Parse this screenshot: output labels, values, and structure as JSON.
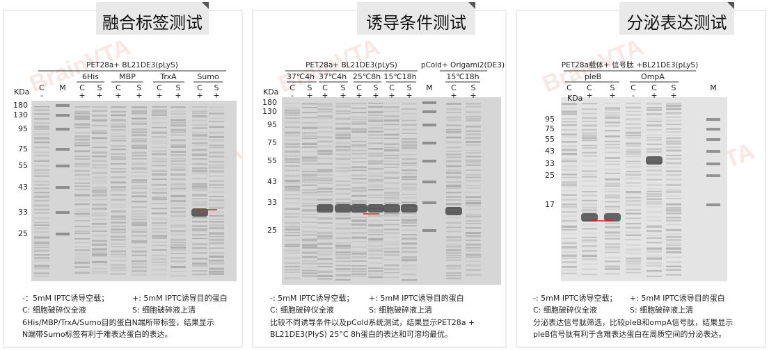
{
  "watermark": "BrainVTA",
  "panels": [
    {
      "title": "融合标签测试",
      "constructs": [
        {
          "label": "PET28a+ BL21DE3(pLyS)",
          "groups": [
            "6His",
            "MBP",
            "TrxA",
            "Sumo"
          ]
        }
      ],
      "kda_label": "KDa",
      "markers": [
        "180",
        "130",
        "95",
        "75",
        "55",
        "43",
        "33",
        "25"
      ],
      "lanes": [
        {
          "label": "C",
          "sign": "-"
        },
        {
          "label": "M"
        },
        {
          "label": "C",
          "sign": "+"
        },
        {
          "label": "S",
          "sign": "+"
        },
        {
          "label": "C",
          "sign": "+"
        },
        {
          "label": "S",
          "sign": "+"
        },
        {
          "label": "C",
          "sign": "+"
        },
        {
          "label": "S",
          "sign": "+"
        },
        {
          "label": "C",
          "sign": "+"
        },
        {
          "label": "S",
          "sign": "+"
        }
      ],
      "legend": [
        [
          "-：5mM  IPTC诱导空载；",
          "+: 5mM IPTC诱导目的蛋白"
        ],
        [
          "C:   细胞破碎仪全液",
          "S: 细胞破碎液上清"
        ]
      ],
      "notes": [
        "6His/MBP/TrxA/Sumo目的蛋白N端所带标签，结果显示",
        "N端带Sumo标签有利于难表达蛋白的表达。"
      ]
    },
    {
      "title": "诱导条件测试",
      "constructs": [
        {
          "label": "PET28a+ BL21DE3(pLyS)",
          "groups": [
            "37℃4h",
            "37℃4h",
            "25℃8h",
            "15℃18h"
          ]
        },
        {
          "label": "pCold+ Origami2(DE3)",
          "groups": [
            "15℃18h"
          ]
        }
      ],
      "kda_label": "KDa",
      "markers": [
        "180",
        "130",
        "95",
        "75",
        "55",
        "43",
        "33",
        "25"
      ],
      "lanes": [
        {
          "label": "C",
          "sign": "-"
        },
        {
          "label": "S",
          "sign": "+"
        },
        {
          "label": "C",
          "sign": "+"
        },
        {
          "label": "S",
          "sign": "+"
        },
        {
          "label": "C",
          "sign": "+"
        },
        {
          "label": "S",
          "sign": "+"
        },
        {
          "label": "C",
          "sign": "+"
        },
        {
          "label": "S",
          "sign": "+"
        },
        {
          "label": "M"
        },
        {
          "label": "C",
          "sign": "+"
        },
        {
          "label": "S",
          "sign": "+"
        }
      ],
      "legend": [
        [
          "-:   5mM  IPTC诱导空载；",
          "+: 5mM IPTC诱导目的蛋白"
        ],
        [
          "C:   细胞破碎仪全液",
          "S: 细胞破碎液上清"
        ]
      ],
      "notes": [
        "比较不同诱导条件以及pCold系统测试，结果显示PET28a +",
        "BL21DE3(PlyS) 25°C 8h蛋白的表达和可溶均最优。"
      ]
    },
    {
      "title": "分泌表达测试",
      "constructs": [
        {
          "label": "PET28a载体+ 信号肽 +BL21DE3(pLyS)",
          "groups": [
            "pleB",
            "OmpA"
          ]
        }
      ],
      "kda_label": "KDa",
      "markers": [
        "95",
        "75",
        "55",
        "43",
        "33",
        "25",
        "17"
      ],
      "lanes": [
        {
          "label": "C",
          "sign": "-"
        },
        {
          "label": "C",
          "sign": "+"
        },
        {
          "label": "S",
          "sign": "+"
        },
        {
          "label": "C",
          "sign": "-"
        },
        {
          "label": "C",
          "sign": "+"
        },
        {
          "label": "S",
          "sign": "+"
        },
        {
          "label": "M"
        }
      ],
      "legend": [
        [
          "-:  5mM  IPTC诱导空载；",
          "+: 5mM IPTC诱导目的蛋白"
        ],
        [
          "C:  细胞破碎仪全液",
          "S: 细胞破碎液上清"
        ]
      ],
      "notes": [
        "分泌表达信号肽筛选，比较pleB和ompA信号肽，结果显示",
        "pleB信号肽有利于含难表达蛋白在周质空间的分泌表达。"
      ]
    }
  ]
}
